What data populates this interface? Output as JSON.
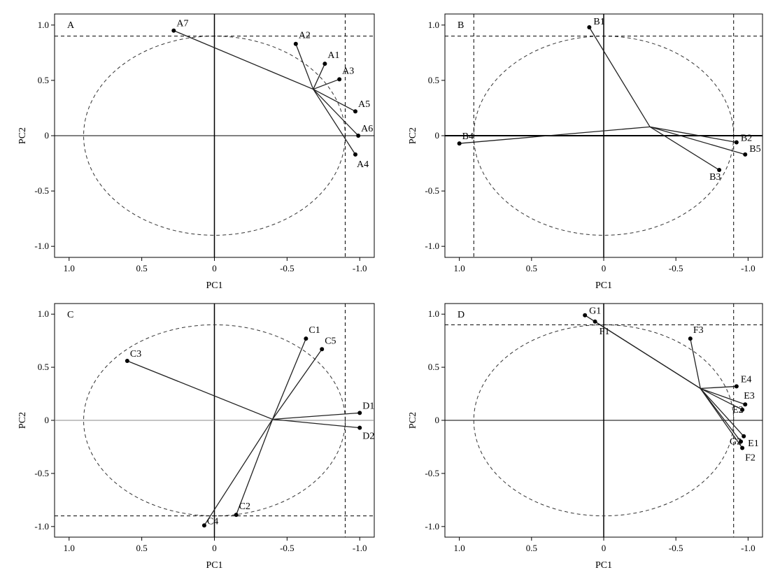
{
  "chart_data": [
    {
      "type": "scatter",
      "panel": "A",
      "xlabel": "PC1",
      "ylabel": "PC2",
      "xlim": [
        1.1,
        -1.1
      ],
      "ylim": [
        -1.1,
        1.1
      ],
      "xticks": [
        "1.0",
        "0.5",
        "0",
        "-0.5",
        "-1.0"
      ],
      "yticks": [
        "1.0",
        "0.5",
        "0",
        "-0.5",
        "-1.0"
      ],
      "circle_radius": 0.9,
      "threshold_x": -0.9,
      "threshold_y": 0.9,
      "hub": [
        -0.68,
        0.42
      ],
      "points": [
        {
          "label": "A7",
          "x": 0.28,
          "y": 0.95
        },
        {
          "label": "A2",
          "x": -0.56,
          "y": 0.83
        },
        {
          "label": "A1",
          "x": -0.76,
          "y": 0.65
        },
        {
          "label": "A3",
          "x": -0.86,
          "y": 0.51
        },
        {
          "label": "A5",
          "x": -0.97,
          "y": 0.22
        },
        {
          "label": "A6",
          "x": -0.99,
          "y": 0.0
        },
        {
          "label": "A4",
          "x": -0.97,
          "y": -0.17
        }
      ]
    },
    {
      "type": "scatter",
      "panel": "B",
      "xlabel": "PC1",
      "ylabel": "PC2",
      "xlim": [
        1.1,
        -1.1
      ],
      "ylim": [
        -1.1,
        1.1
      ],
      "xticks": [
        "1.0",
        "0.5",
        "0",
        "-0.5",
        "-1.0"
      ],
      "yticks": [
        "1.0",
        "0.5",
        "0",
        "-0.5",
        "-1.0"
      ],
      "circle_radius": 0.9,
      "threshold_x": -0.9,
      "threshold_x2": 0.9,
      "threshold_y": 0.9,
      "hub": [
        -0.32,
        0.08
      ],
      "points": [
        {
          "label": "B1",
          "x": 0.1,
          "y": 0.98
        },
        {
          "label": "B4",
          "x": 1.0,
          "y": -0.07
        },
        {
          "label": "B2",
          "x": -0.92,
          "y": -0.06
        },
        {
          "label": "B5",
          "x": -0.98,
          "y": -0.17
        },
        {
          "label": "B3",
          "x": -0.8,
          "y": -0.31
        }
      ]
    },
    {
      "type": "scatter",
      "panel": "C",
      "xlabel": "PC1",
      "ylabel": "PC2",
      "xlim": [
        1.1,
        -1.1
      ],
      "ylim": [
        -1.1,
        1.1
      ],
      "xticks": [
        "1.0",
        "0.5",
        "0",
        "-0.5",
        "-1.0"
      ],
      "yticks": [
        "1.0",
        "0.5",
        "0",
        "-0.5",
        "-1.0"
      ],
      "circle_radius": 0.9,
      "threshold_x": -0.9,
      "threshold_y": -0.9,
      "hub": [
        -0.4,
        0.01
      ],
      "points": [
        {
          "label": "C3",
          "x": 0.6,
          "y": 0.56
        },
        {
          "label": "C1",
          "x": -0.63,
          "y": 0.77
        },
        {
          "label": "C5",
          "x": -0.74,
          "y": 0.67
        },
        {
          "label": "D1",
          "x": -1.0,
          "y": 0.07
        },
        {
          "label": "D2",
          "x": -1.0,
          "y": -0.07
        },
        {
          "label": "C2",
          "x": -0.15,
          "y": -0.89
        },
        {
          "label": "C4",
          "x": 0.07,
          "y": -0.99
        }
      ]
    },
    {
      "type": "scatter",
      "panel": "D",
      "xlabel": "PC1",
      "ylabel": "PC2",
      "xlim": [
        1.1,
        -1.1
      ],
      "ylim": [
        -1.1,
        1.1
      ],
      "xticks": [
        "1.0",
        "0.5",
        "0",
        "-0.5",
        "-1.0"
      ],
      "yticks": [
        "1.0",
        "0.5",
        "0",
        "-0.5",
        "-1.0"
      ],
      "circle_radius": 0.9,
      "threshold_x": -0.9,
      "threshold_y": 0.9,
      "hub": [
        -0.67,
        0.3
      ],
      "points": [
        {
          "label": "G1",
          "x": 0.13,
          "y": 0.99
        },
        {
          "label": "F1",
          "x": 0.06,
          "y": 0.93
        },
        {
          "label": "F3",
          "x": -0.6,
          "y": 0.77
        },
        {
          "label": "E4",
          "x": -0.92,
          "y": 0.32
        },
        {
          "label": "E3",
          "x": -0.98,
          "y": 0.15
        },
        {
          "label": "E2",
          "x": -0.96,
          "y": 0.1
        },
        {
          "label": "E1",
          "x": -0.97,
          "y": -0.15
        },
        {
          "label": "G2",
          "x": -0.95,
          "y": -0.2
        },
        {
          "label": "F2",
          "x": -0.96,
          "y": -0.26
        }
      ]
    }
  ]
}
